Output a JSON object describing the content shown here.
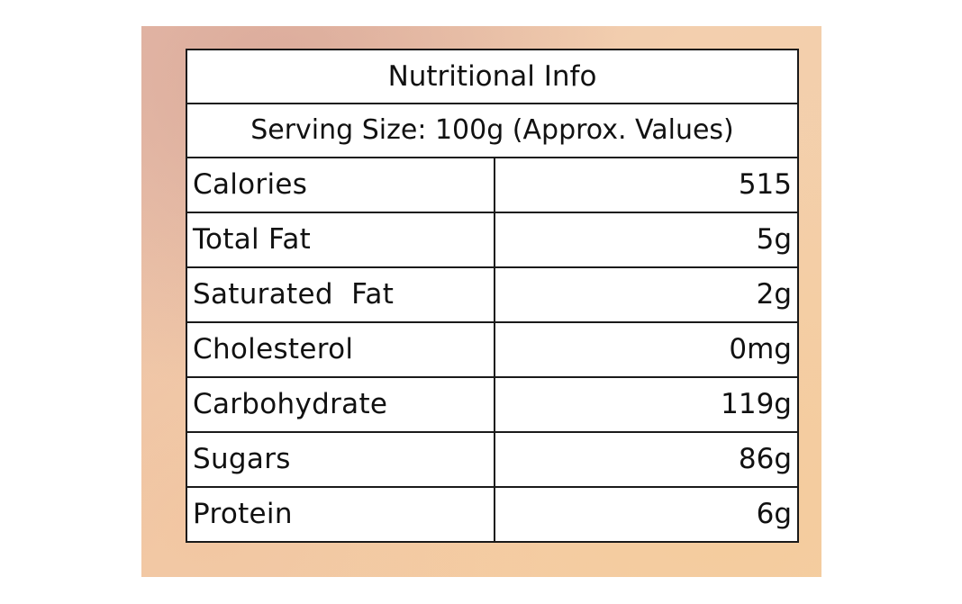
{
  "table": {
    "title": "Nutritional Info",
    "serving": "Serving Size: 100g (Approx. Values)",
    "rows": [
      {
        "label": "Calories",
        "value": "515"
      },
      {
        "label": "Total Fat",
        "value": "5g"
      },
      {
        "label": "Saturated  Fat",
        "value": "2g"
      },
      {
        "label": "Cholesterol",
        "value": "0mg"
      },
      {
        "label": "Carbohydrate",
        "value": "119g"
      },
      {
        "label": "Sugars",
        "value": "86g"
      },
      {
        "label": "Protein",
        "value": "6g"
      }
    ]
  },
  "colors": {
    "border": "#1a1a1a",
    "background_tint": "#f3cfae"
  }
}
